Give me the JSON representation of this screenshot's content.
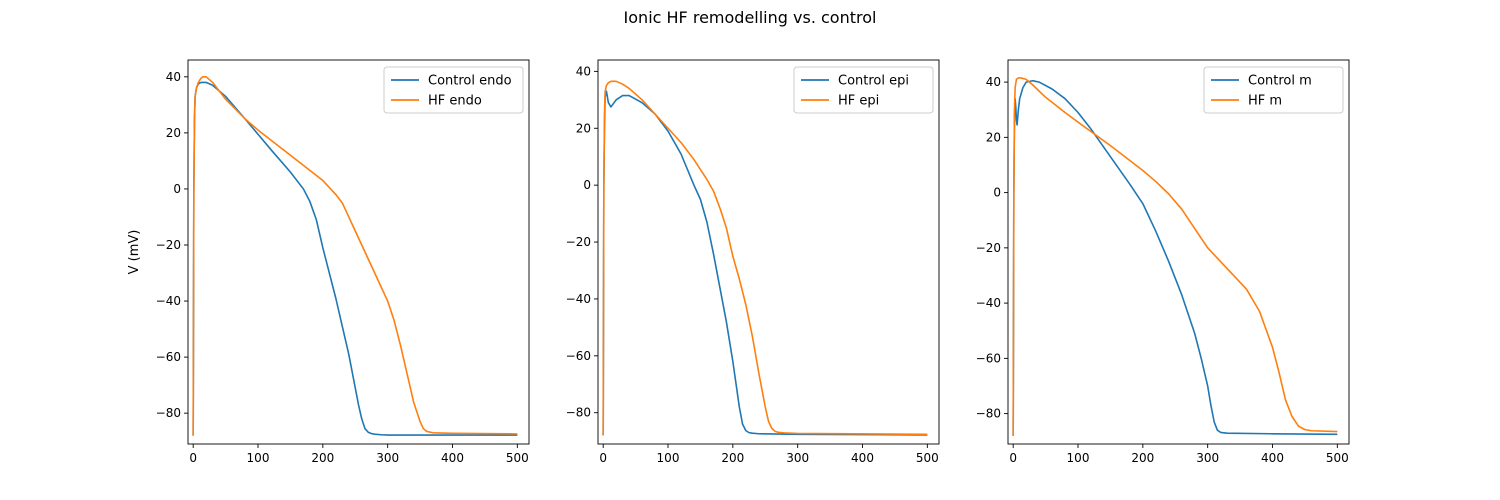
{
  "figure": {
    "title": "Ionic HF remodelling vs. control"
  },
  "chart_data": [
    {
      "type": "line",
      "title": "",
      "xlabel": "",
      "ylabel": "V (mV)",
      "xlim": [
        -8,
        518
      ],
      "ylim": [
        -91,
        46
      ],
      "xticks": [
        0,
        100,
        200,
        300,
        400,
        500
      ],
      "yticks": [
        -80,
        -60,
        -40,
        -20,
        0,
        20,
        40
      ],
      "legend_position": "top-right",
      "series": [
        {
          "name": "Control endo",
          "color": "#1f77b4",
          "x": [
            0,
            1,
            2,
            3,
            5,
            8,
            12,
            20,
            30,
            50,
            80,
            100,
            120,
            150,
            170,
            180,
            190,
            200,
            210,
            220,
            230,
            240,
            250,
            255,
            260,
            265,
            270,
            275,
            280,
            290,
            300,
            400,
            500
          ],
          "y": [
            -88,
            0,
            25,
            33,
            36,
            37.5,
            38,
            38,
            37,
            33,
            25,
            19.5,
            14,
            6,
            0,
            -4.5,
            -11,
            -21,
            -30,
            -39,
            -49,
            -59,
            -71,
            -77,
            -82,
            -85.5,
            -86.8,
            -87.3,
            -87.5,
            -87.7,
            -87.8,
            -87.8,
            -87.8
          ]
        },
        {
          "name": "HF endo",
          "color": "#ff7f0e",
          "x": [
            0,
            1,
            2,
            3,
            5,
            8,
            12,
            15,
            20,
            30,
            50,
            80,
            100,
            150,
            200,
            220,
            230,
            240,
            250,
            260,
            270,
            280,
            290,
            300,
            310,
            320,
            330,
            340,
            350,
            355,
            360,
            370,
            400,
            500
          ],
          "y": [
            -88,
            0,
            25,
            33,
            36,
            38,
            39.5,
            40,
            40,
            38,
            32,
            25,
            21,
            12,
            3,
            -2,
            -5,
            -10,
            -15,
            -20,
            -25,
            -30,
            -35,
            -40,
            -47,
            -56,
            -66,
            -76,
            -83,
            -85.5,
            -86.5,
            -87,
            -87.2,
            -87.4
          ]
        }
      ]
    },
    {
      "type": "line",
      "title": "",
      "xlabel": "",
      "ylabel": "",
      "xlim": [
        -8,
        518
      ],
      "ylim": [
        -91,
        44
      ],
      "xticks": [
        0,
        100,
        200,
        300,
        400,
        500
      ],
      "yticks": [
        -80,
        -60,
        -40,
        -20,
        0,
        20,
        40
      ],
      "legend_position": "top-right",
      "series": [
        {
          "name": "Control epi",
          "color": "#1f77b4",
          "x": [
            0,
            1,
            2,
            3,
            5,
            8,
            12,
            20,
            30,
            40,
            60,
            80,
            100,
            120,
            140,
            150,
            160,
            170,
            180,
            190,
            200,
            205,
            210,
            215,
            220,
            225,
            230,
            240,
            300,
            500
          ],
          "y": [
            -88,
            0,
            20,
            31,
            33,
            29,
            27.5,
            30,
            31.5,
            31.5,
            29,
            25,
            19,
            11,
            0,
            -5,
            -13,
            -24,
            -36,
            -48,
            -62,
            -70,
            -78,
            -84,
            -86.3,
            -87,
            -87.2,
            -87.4,
            -87.6,
            -87.8
          ]
        },
        {
          "name": "HF epi",
          "color": "#ff7f0e",
          "x": [
            0,
            1,
            2,
            3,
            5,
            8,
            12,
            20,
            30,
            40,
            60,
            80,
            100,
            120,
            140,
            160,
            170,
            180,
            190,
            200,
            210,
            220,
            230,
            240,
            245,
            250,
            255,
            260,
            265,
            270,
            280,
            300,
            500
          ],
          "y": [
            -88,
            0,
            25,
            33,
            35,
            36,
            36.5,
            36.5,
            35.5,
            34,
            30,
            25,
            20,
            15,
            9,
            2,
            -2,
            -8,
            -15,
            -25,
            -33,
            -42,
            -53,
            -66,
            -72,
            -78,
            -83,
            -85.5,
            -86.5,
            -86.9,
            -87.1,
            -87.3,
            -87.6
          ]
        }
      ]
    },
    {
      "type": "line",
      "title": "",
      "xlabel": "",
      "ylabel": "",
      "xlim": [
        -8,
        518
      ],
      "ylim": [
        -91,
        48
      ],
      "xticks": [
        0,
        100,
        200,
        300,
        400,
        500
      ],
      "yticks": [
        -80,
        -60,
        -40,
        -20,
        0,
        20,
        40
      ],
      "legend_position": "top-right",
      "series": [
        {
          "name": "Control m",
          "color": "#1f77b4",
          "x": [
            0,
            1,
            2,
            3,
            4,
            5,
            6,
            8,
            10,
            15,
            20,
            30,
            40,
            60,
            80,
            100,
            120,
            150,
            180,
            200,
            220,
            240,
            260,
            280,
            290,
            300,
            305,
            310,
            315,
            320,
            330,
            400,
            500
          ],
          "y": [
            -88,
            0,
            28,
            34,
            31,
            26,
            24.5,
            30,
            34,
            38,
            40,
            40.5,
            40,
            37.5,
            34,
            29,
            23,
            13,
            3,
            -4,
            -14,
            -25,
            -37,
            -51,
            -60,
            -70,
            -77,
            -83,
            -86,
            -86.8,
            -87.1,
            -87.3,
            -87.5
          ]
        },
        {
          "name": "HF m",
          "color": "#ff7f0e",
          "x": [
            0,
            1,
            2,
            3,
            5,
            8,
            12,
            20,
            30,
            50,
            80,
            100,
            150,
            200,
            220,
            240,
            260,
            280,
            300,
            320,
            340,
            360,
            380,
            400,
            410,
            420,
            430,
            440,
            450,
            460,
            500
          ],
          "y": [
            -88,
            0,
            30,
            38,
            41,
            41.5,
            41.5,
            41,
            39,
            34.5,
            29,
            25.5,
            17,
            8,
            4,
            -0.5,
            -6,
            -13,
            -20,
            -25,
            -30,
            -35,
            -43,
            -56,
            -65,
            -75,
            -81,
            -84.5,
            -85.8,
            -86.2,
            -86.5
          ]
        }
      ]
    }
  ]
}
